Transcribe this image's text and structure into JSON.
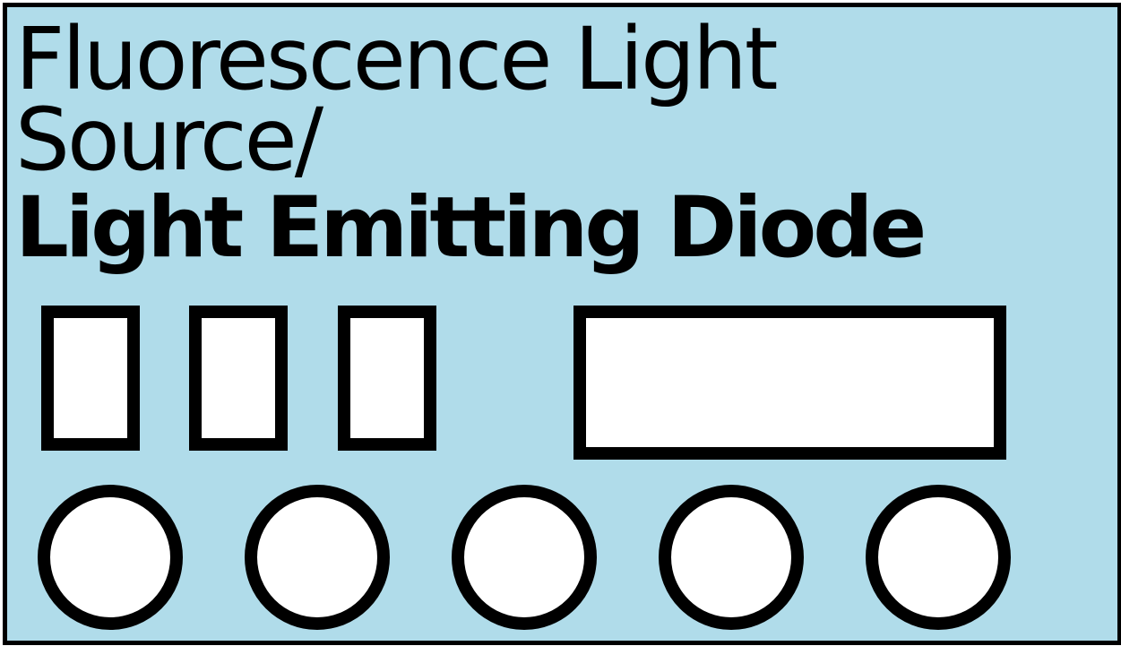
{
  "device": {
    "title_line1": "Fluorescence Light",
    "title_line2": "Source/",
    "title_line3": "Light Emitting Diode",
    "panel_color": "#b0dcea",
    "outline_color": "#000000",
    "fill_color": "#ffffff"
  }
}
